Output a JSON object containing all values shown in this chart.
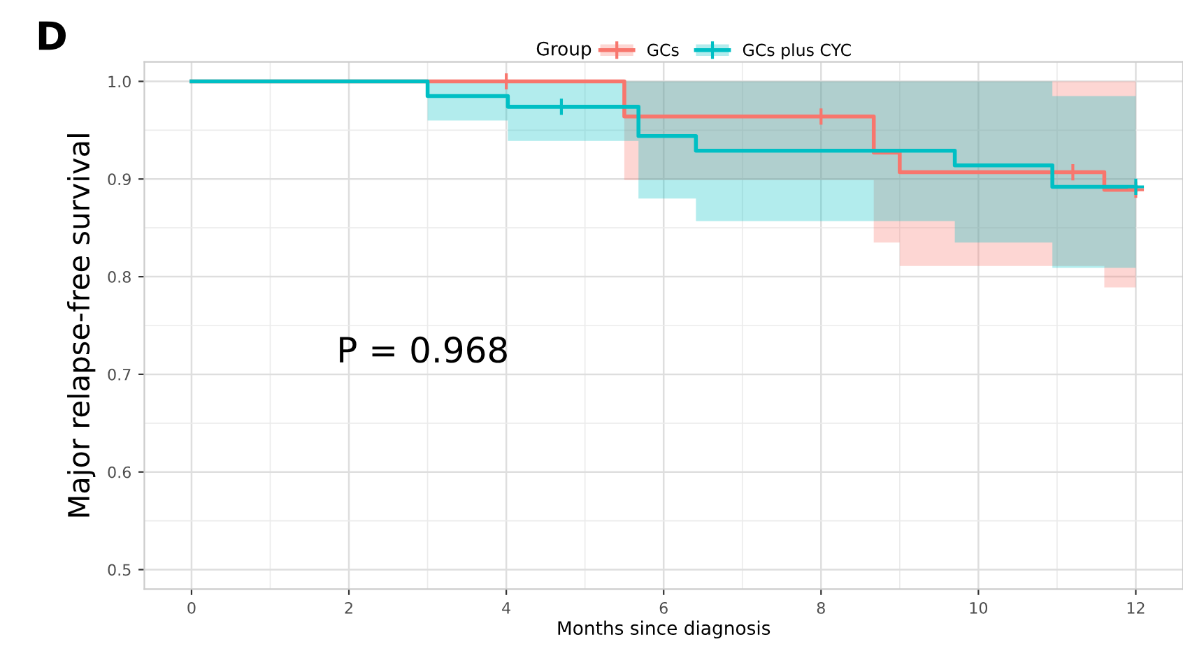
{
  "chart_data": {
    "type": "step",
    "xlabel": "Months since diagnosis",
    "ylabel": "Major relapse-free survival",
    "legend_title": "Group",
    "annotations": [
      "D",
      "P = 0.968"
    ],
    "series": [
      {
        "name": "GCs",
        "color": "#f8766d",
        "x": [
          0,
          5.5,
          8.67,
          9.0,
          11.6,
          12
        ],
        "values": [
          1.0,
          0.964,
          0.927,
          0.907,
          0.889,
          0.889
        ],
        "lower": [
          1.0,
          0.899,
          0.835,
          0.811,
          0.789,
          0.789
        ],
        "upper": [
          1.0,
          1.0,
          1.0,
          1.0,
          1.0,
          1.0
        ]
      },
      {
        "name": "GCs plus CYC",
        "color": "#00bfc4",
        "x": [
          0,
          3.0,
          4.02,
          5.68,
          6.41,
          9.7,
          10.94,
          12
        ],
        "values": [
          1.0,
          0.985,
          0.974,
          0.944,
          0.929,
          0.914,
          0.892,
          0.892
        ],
        "lower": [
          1.0,
          0.96,
          0.939,
          0.88,
          0.857,
          0.835,
          0.809,
          0.809
        ],
        "upper": [
          1.0,
          1.0,
          1.0,
          1.0,
          1.0,
          1.0,
          0.985,
          0.985
        ]
      },
      {
        "type": "scatter",
        "marker": "cross",
        "color": "#f8766d",
        "x": [
          4.0,
          8.0,
          11.2,
          12.0
        ],
        "values": [
          1.0,
          0.964,
          0.907,
          0.889
        ]
      },
      {
        "type": "scatter",
        "marker": "cross",
        "color": "#00bfc4",
        "x": [
          4.7,
          12.0
        ],
        "values": [
          0.974,
          0.892
        ]
      }
    ],
    "xlim": [
      -0.6,
      12.6
    ],
    "ylim": [
      0.48,
      1.02
    ],
    "xticks": [
      0,
      2,
      4,
      6,
      8,
      10,
      12
    ],
    "yticks": [
      {
        "value": 0.5,
        "label": "0.5"
      },
      {
        "value": 0.6,
        "label": "0.6"
      },
      {
        "value": 0.7,
        "label": "0.7"
      },
      {
        "value": 0.8,
        "label": "0.8"
      },
      {
        "value": 0.9,
        "label": "0.9"
      },
      {
        "value": 1.0,
        "label": "1.0"
      }
    ],
    "grid": true,
    "legend": "top"
  }
}
